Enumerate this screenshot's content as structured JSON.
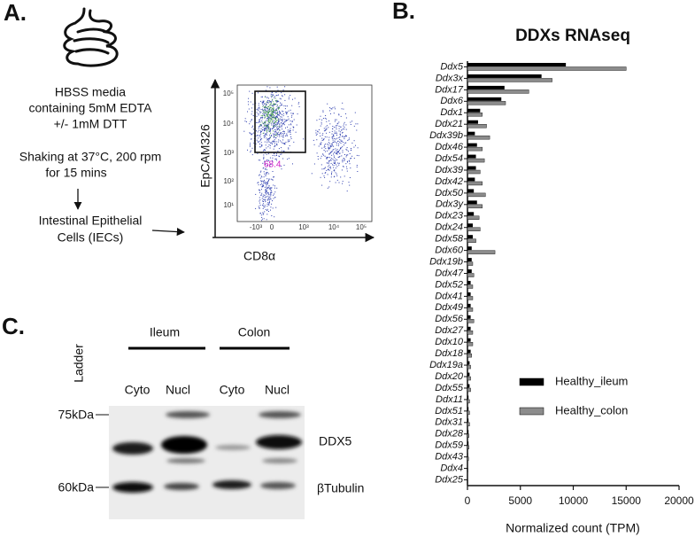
{
  "panel_a": {
    "label": "A.",
    "media_text": [
      "HBSS media",
      "containing 5mM EDTA",
      "+/- 1mM DTT"
    ],
    "shaking_text": [
      "Shaking at 37°C, 200 rpm",
      "for 15 mins"
    ],
    "cells_text": [
      "Intestinal Epithelial",
      "Cells (IECs)"
    ],
    "flow": {
      "y_label": "EpCAM326",
      "x_label": "CD8α",
      "gate_value": "68.4",
      "y_tick_labels": [
        "10⁵",
        "10⁴",
        "10³",
        "10²",
        "10¹"
      ],
      "x_tick_labels": [
        "-10³",
        "0",
        "10³",
        "10⁴",
        "10⁵"
      ]
    }
  },
  "chart_data": {
    "type": "hbar",
    "panel_label": "B.",
    "title": "DDXs RNAseq",
    "x_label": "Normalized count (TPM)",
    "categories": [
      "Ddx5",
      "Ddx3x",
      "Ddx17",
      "Ddx6",
      "Ddx1",
      "Ddx21",
      "Ddx39b",
      "Ddx46",
      "Ddx54",
      "Ddx39",
      "Ddx42",
      "Ddx50",
      "Ddx3y",
      "Ddx23",
      "Ddx24",
      "Ddx58",
      "Ddx60",
      "Ddx19b",
      "Ddx47",
      "Ddx52",
      "Ddx41",
      "Ddx49",
      "Ddx56",
      "Ddx27",
      "Ddx10",
      "Ddx18",
      "Ddx19a",
      "Ddx20",
      "Ddx55",
      "Ddx11",
      "Ddx51",
      "Ddx31",
      "Ddx28",
      "Ddx59",
      "Ddx43",
      "Ddx4",
      "Ddx25"
    ],
    "series": [
      {
        "name": "Healthy_ileum",
        "color": "#000000",
        "values": [
          9300,
          7000,
          3500,
          3200,
          1200,
          1000,
          700,
          900,
          800,
          800,
          700,
          600,
          900,
          600,
          500,
          500,
          400,
          400,
          400,
          300,
          300,
          300,
          300,
          300,
          300,
          300,
          200,
          200,
          200,
          100,
          100,
          100,
          100,
          100,
          50,
          0,
          0
        ]
      },
      {
        "name": "Healthy_colon",
        "color": "#8c8c8c",
        "values": [
          15000,
          8000,
          5800,
          3600,
          1400,
          1800,
          2100,
          1400,
          1600,
          1200,
          1400,
          1700,
          1400,
          1100,
          1200,
          800,
          2600,
          500,
          600,
          500,
          500,
          500,
          600,
          500,
          500,
          400,
          300,
          300,
          300,
          200,
          200,
          200,
          150,
          150,
          100,
          50,
          30
        ]
      }
    ],
    "xlim": [
      0,
      20000
    ],
    "xticks": [
      0,
      5000,
      10000,
      15000,
      20000
    ]
  },
  "panel_c": {
    "label": "C.",
    "groups": [
      "Ileum",
      "Colon"
    ],
    "ladder_label": "Ladder",
    "lanes": [
      "Cyto",
      "Nucl",
      "Cyto",
      "Nucl"
    ],
    "markers": [
      "75kDa",
      "60kDa"
    ],
    "bands": [
      "DDX5",
      "βTubulin"
    ]
  }
}
